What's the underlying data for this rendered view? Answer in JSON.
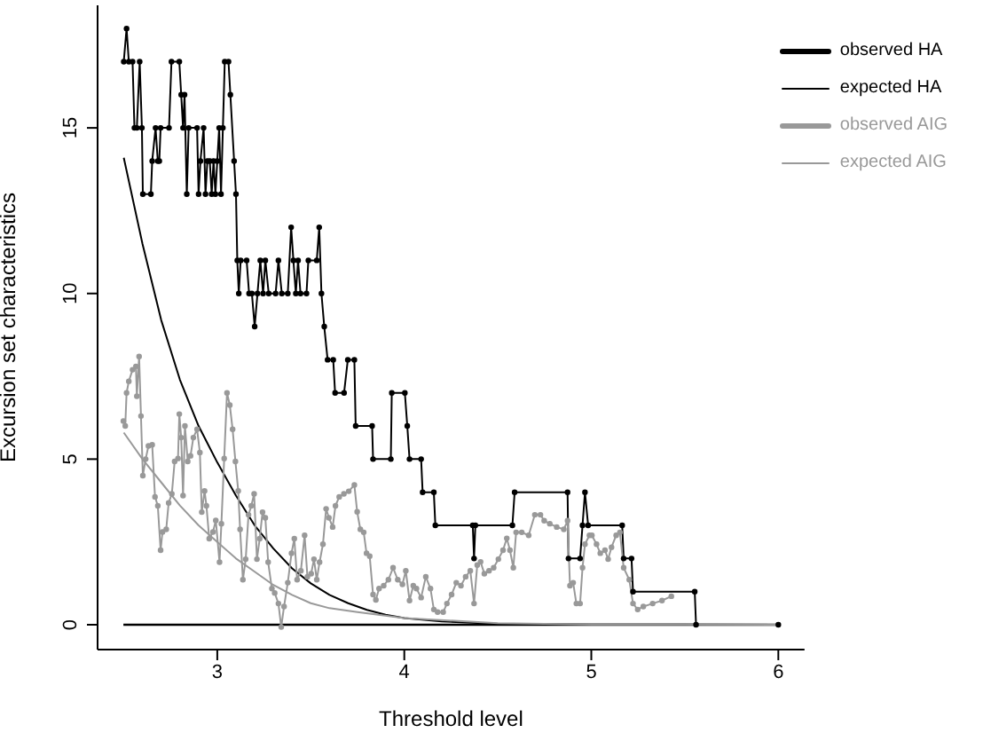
{
  "chart_data": {
    "type": "line",
    "xlabel": "Threshold level",
    "ylabel": "Excursion set characteristics",
    "xlim": [
      2.36,
      6.14
    ],
    "ylim": [
      -0.75,
      18.7
    ],
    "xticks": [
      3,
      4,
      5,
      6
    ],
    "yticks": [
      0,
      5,
      10,
      15
    ],
    "legend": "top right",
    "ref_lines": [
      {
        "axis": "y",
        "value": 0,
        "color": "#000000"
      }
    ],
    "series": [
      {
        "name": "observed HA",
        "color": "#000000",
        "marker": "circle",
        "x": [
          2.5,
          2.515,
          2.527,
          2.547,
          2.557,
          2.57,
          2.585,
          2.597,
          2.602,
          2.645,
          2.652,
          2.67,
          2.682,
          2.69,
          2.697,
          2.742,
          2.755,
          2.797,
          2.807,
          2.817,
          2.825,
          2.837,
          2.847,
          2.892,
          2.9,
          2.91,
          2.927,
          2.937,
          2.947,
          2.96,
          2.97,
          2.98,
          2.99,
          3.0,
          3.01,
          3.02,
          3.03,
          3.04,
          3.06,
          3.07,
          3.09,
          3.1,
          3.107,
          3.115,
          3.125,
          3.157,
          3.17,
          3.185,
          3.2,
          3.215,
          3.23,
          3.245,
          3.257,
          3.275,
          3.312,
          3.327,
          3.345,
          3.377,
          3.395,
          3.407,
          3.42,
          3.432,
          3.445,
          3.477,
          3.487,
          3.532,
          3.545,
          3.557,
          3.572,
          3.59,
          3.62,
          3.63,
          3.678,
          3.698,
          3.733,
          3.74,
          3.828,
          3.833,
          3.928,
          3.933,
          4.003,
          4.016,
          4.028,
          4.09,
          4.098,
          4.158,
          4.166,
          4.366,
          4.373,
          4.38,
          4.578,
          4.59,
          4.873,
          4.878,
          4.94,
          4.953,
          4.966,
          4.983,
          5.165,
          5.173,
          5.215,
          5.223,
          5.553,
          5.56,
          6.0
        ],
        "values": [
          17,
          18,
          17,
          17,
          15,
          15,
          17,
          15,
          13,
          13,
          14,
          15,
          14,
          14,
          15,
          15,
          17,
          17,
          16,
          15,
          16,
          13,
          15,
          15,
          13,
          14,
          15,
          13,
          14,
          14,
          13,
          14,
          13,
          14,
          15,
          13,
          15,
          17,
          17,
          16,
          14,
          13,
          11,
          10,
          11,
          11,
          10,
          10,
          9,
          10,
          11,
          10,
          11,
          10,
          10,
          11,
          10,
          10,
          12,
          11,
          10,
          11,
          10,
          10,
          11,
          11,
          12,
          10,
          9,
          8,
          8,
          7,
          7,
          8,
          8,
          6,
          6,
          5,
          5,
          7,
          7,
          6,
          5,
          5,
          4,
          4,
          3,
          3,
          2,
          3,
          3,
          4,
          4,
          2,
          2,
          3,
          4,
          3,
          3,
          2,
          2,
          1,
          1,
          0,
          0
        ]
      },
      {
        "name": "expected HA",
        "color": "#000000",
        "marker": "none",
        "x": [
          2.5,
          2.6,
          2.7,
          2.8,
          2.9,
          3.0,
          3.1,
          3.2,
          3.3,
          3.4,
          3.5,
          3.6,
          3.7,
          3.8,
          3.9,
          4.0,
          4.2,
          4.5,
          5.0,
          6.0
        ],
        "values": [
          14.1,
          11.5,
          9.2,
          7.4,
          6.0,
          4.9,
          3.9,
          3.0,
          2.3,
          1.7,
          1.25,
          0.9,
          0.65,
          0.45,
          0.3,
          0.2,
          0.1,
          0.03,
          0.01,
          0
        ]
      },
      {
        "name": "observed AIG",
        "color": "#999999",
        "marker": "circle",
        "x": [
          2.498,
          2.508,
          2.515,
          2.527,
          2.547,
          2.565,
          2.57,
          2.582,
          2.592,
          2.602,
          2.617,
          2.632,
          2.652,
          2.667,
          2.682,
          2.697,
          2.707,
          2.727,
          2.74,
          2.757,
          2.772,
          2.79,
          2.797,
          2.807,
          2.817,
          2.827,
          2.842,
          2.857,
          2.872,
          2.892,
          2.907,
          2.917,
          2.932,
          2.942,
          2.957,
          2.977,
          2.992,
          3.012,
          3.022,
          3.037,
          3.052,
          3.067,
          3.082,
          3.097,
          3.112,
          3.122,
          3.137,
          3.152,
          3.167,
          3.182,
          3.197,
          3.212,
          3.227,
          3.242,
          3.257,
          3.272,
          3.292,
          3.307,
          3.327,
          3.342,
          3.357,
          3.377,
          3.397,
          3.412,
          3.427,
          3.447,
          3.467,
          3.482,
          3.502,
          3.517,
          3.532,
          3.547,
          3.565,
          3.582,
          3.597,
          3.617,
          3.632,
          3.652,
          3.677,
          3.703,
          3.733,
          3.748,
          3.765,
          3.783,
          3.798,
          3.815,
          3.833,
          3.848,
          3.865,
          3.89,
          3.915,
          3.94,
          3.965,
          3.99,
          4.008,
          4.028,
          4.048,
          4.065,
          4.09,
          4.115,
          4.14,
          4.158,
          4.178,
          4.208,
          4.228,
          4.253,
          4.278,
          4.303,
          4.328,
          4.353,
          4.373,
          4.39,
          4.408,
          4.428,
          4.453,
          4.478,
          4.503,
          4.528,
          4.548,
          4.565,
          4.583,
          4.598,
          4.628,
          4.665,
          4.698,
          4.728,
          4.748,
          4.778,
          4.815,
          4.853,
          4.873,
          4.886,
          4.903,
          4.92,
          4.94,
          4.953,
          4.966,
          4.99,
          5.003,
          5.028,
          5.048,
          5.073,
          5.09,
          5.108,
          5.133,
          5.153,
          5.173,
          5.203,
          5.223,
          5.248,
          5.278,
          5.328,
          5.378,
          5.428
        ],
        "values": [
          6.15,
          6.0,
          7.0,
          7.35,
          7.7,
          7.8,
          6.9,
          8.1,
          6.3,
          4.5,
          5.0,
          5.4,
          5.43,
          3.86,
          3.59,
          2.25,
          2.8,
          2.88,
          3.68,
          3.95,
          4.93,
          5.02,
          6.36,
          5.65,
          3.9,
          6.0,
          4.93,
          5.1,
          5.65,
          5.9,
          5.2,
          3.4,
          4.04,
          3.59,
          2.6,
          2.8,
          3.15,
          1.89,
          3.05,
          5.02,
          7.0,
          6.63,
          5.9,
          4.93,
          4.04,
          2.88,
          1.36,
          1.98,
          3.32,
          3.59,
          3.95,
          1.98,
          2.6,
          3.4,
          3.23,
          1.89,
          1.09,
          0.96,
          0.64,
          -0.07,
          0.55,
          1.27,
          2.16,
          2.6,
          1.36,
          1.63,
          2.7,
          1.45,
          1.54,
          1.98,
          1.36,
          1.89,
          2.43,
          3.5,
          3.23,
          2.95,
          3.59,
          3.86,
          3.95,
          4.03,
          4.22,
          3.41,
          2.88,
          2.79,
          2.16,
          2.07,
          0.91,
          0.75,
          1.09,
          1.18,
          1.36,
          1.72,
          1.36,
          1.22,
          1.63,
          0.73,
          1.18,
          1.09,
          0.82,
          1.45,
          1.09,
          0.46,
          0.38,
          0.38,
          0.64,
          0.91,
          1.27,
          1.18,
          1.45,
          1.63,
          0.64,
          1.8,
          1.9,
          1.54,
          1.63,
          1.72,
          1.98,
          2.25,
          2.61,
          2.25,
          1.72,
          2.79,
          2.79,
          2.7,
          3.32,
          3.32,
          3.14,
          3.05,
          2.95,
          2.88,
          3.14,
          1.18,
          1.27,
          0.64,
          0.64,
          1.72,
          2.43,
          2.7,
          2.7,
          2.43,
          2.16,
          2.25,
          1.98,
          2.34,
          2.7,
          2.79,
          1.72,
          1.36,
          0.64,
          0.46,
          0.55,
          0.64,
          0.73,
          0.86
        ]
      },
      {
        "name": "expected AIG",
        "color": "#999999",
        "marker": "none",
        "x": [
          2.5,
          2.6,
          2.7,
          2.8,
          2.9,
          3.0,
          3.1,
          3.2,
          3.3,
          3.4,
          3.5,
          3.6,
          3.75,
          4.0,
          4.5,
          5.0,
          6.0
        ],
        "values": [
          5.8,
          5.0,
          4.3,
          3.6,
          3.0,
          2.5,
          2.0,
          1.6,
          1.2,
          0.9,
          0.65,
          0.5,
          0.38,
          0.2,
          0.05,
          0.01,
          0
        ]
      }
    ]
  }
}
